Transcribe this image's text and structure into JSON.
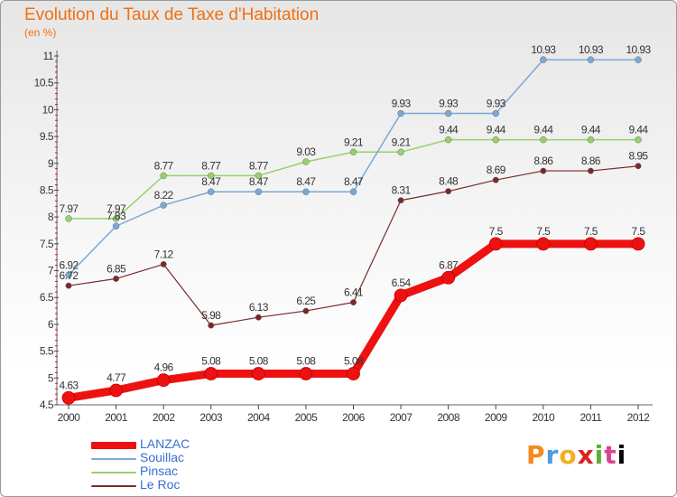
{
  "header": {
    "title": "Evolution du Taux de Taxe d'Habitation",
    "unit": "(en %)"
  },
  "chart_data": {
    "type": "line",
    "title": "Evolution du Taux de Taxe d'Habitation",
    "ylabel": "(en %)",
    "xlabel": "",
    "x": [
      "2000",
      "2001",
      "2002",
      "2003",
      "2004",
      "2005",
      "2006",
      "2007",
      "2008",
      "2009",
      "2010",
      "2011",
      "2012"
    ],
    "ylim": [
      4.5,
      11
    ],
    "yticks": [
      "4.5",
      "5",
      "5.5",
      "6",
      "6.5",
      "7",
      "7.5",
      "8",
      "8.5",
      "9",
      "9.5",
      "10",
      "10.5",
      "11"
    ],
    "grid": false,
    "legend_position": "bottom-left",
    "series": [
      {
        "name": "LANZAC",
        "color": "#ee1111",
        "values": [
          4.63,
          4.77,
          4.96,
          5.08,
          5.08,
          5.08,
          5.08,
          6.54,
          6.87,
          7.5,
          7.5,
          7.5,
          7.5
        ],
        "labels": [
          "4.63",
          "4.77",
          "4.96",
          "5.08",
          "5.08",
          "5.08",
          "5.08",
          "6.54",
          "6.87",
          "7.5",
          "7.5",
          "7.5",
          "7.5"
        ]
      },
      {
        "name": "Souillac",
        "color": "#7aa9d6",
        "values": [
          6.92,
          7.83,
          8.22,
          8.47,
          8.47,
          8.47,
          8.47,
          9.93,
          9.93,
          9.93,
          10.93,
          10.93,
          10.93
        ],
        "labels": [
          "6.92",
          "7.83",
          "8.22",
          "8.47",
          "8.47",
          "8.47",
          "8.47",
          "9.93",
          "9.93",
          "9.93",
          "10.93",
          "10.93",
          "10.93"
        ]
      },
      {
        "name": "Pinsac",
        "color": "#96d26a",
        "values": [
          7.97,
          7.97,
          8.77,
          8.77,
          8.77,
          9.03,
          9.21,
          9.21,
          9.44,
          9.44,
          9.44,
          9.44,
          9.44
        ],
        "labels": [
          "7.97",
          "7.97",
          "8.77",
          "8.77",
          "8.77",
          "9.03",
          "9.21",
          "9.21",
          "9.44",
          "9.44",
          "9.44",
          "9.44",
          "9.44"
        ]
      },
      {
        "name": "Le Roc",
        "color": "#7a2a2a",
        "values": [
          6.72,
          6.85,
          7.12,
          5.98,
          6.13,
          6.25,
          6.41,
          8.31,
          8.48,
          8.69,
          8.86,
          8.86,
          8.95
        ],
        "labels": [
          "6.72",
          "6.85",
          "7.12",
          "5.98",
          "6.13",
          "6.25",
          "6.41",
          "8.31",
          "8.48",
          "8.69",
          "8.86",
          "8.86",
          "8.95"
        ]
      }
    ]
  },
  "logo": {
    "letters": [
      "P",
      "r",
      "o",
      "x",
      "i",
      "t",
      "i"
    ]
  }
}
